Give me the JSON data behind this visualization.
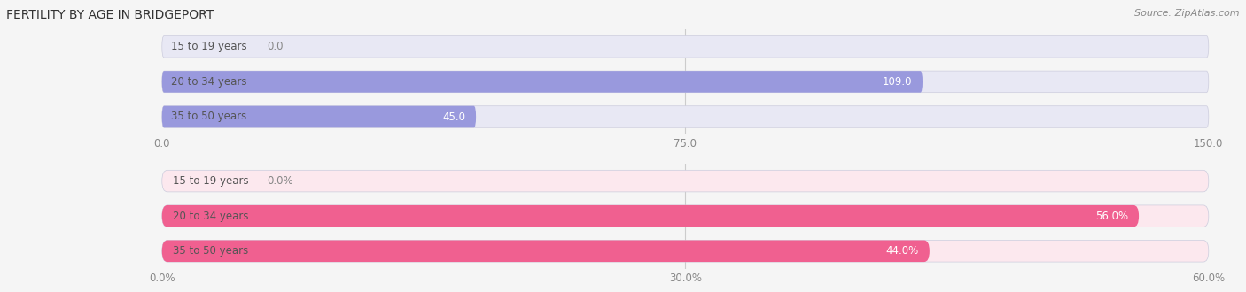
{
  "title": "FERTILITY BY AGE IN BRIDGEPORT",
  "source": "Source: ZipAtlas.com",
  "top_bars": {
    "labels": [
      "15 to 19 years",
      "20 to 34 years",
      "35 to 50 years"
    ],
    "values": [
      0.0,
      109.0,
      45.0
    ],
    "xlim": [
      0,
      150
    ],
    "xticks": [
      0.0,
      75.0,
      150.0
    ],
    "xticklabels": [
      "0.0",
      "75.0",
      "150.0"
    ],
    "bar_color": "#9999dd",
    "bg_color": "#e8e8f4",
    "value_color": "#ffffff",
    "label_color": "#555555"
  },
  "bottom_bars": {
    "labels": [
      "15 to 19 years",
      "20 to 34 years",
      "35 to 50 years"
    ],
    "values": [
      0.0,
      56.0,
      44.0
    ],
    "xlim": [
      0,
      60
    ],
    "xticks": [
      0.0,
      30.0,
      60.0
    ],
    "xticklabels": [
      "0.0%",
      "30.0%",
      "60.0%"
    ],
    "bar_color": "#f06090",
    "bg_color": "#fce8ee",
    "value_color": "#ffffff",
    "label_color": "#555555"
  },
  "bar_height": 0.62,
  "title_fontsize": 10,
  "label_fontsize": 8.5,
  "tick_fontsize": 8.5,
  "value_fontsize": 8.5,
  "fig_bg": "#f5f5f5"
}
